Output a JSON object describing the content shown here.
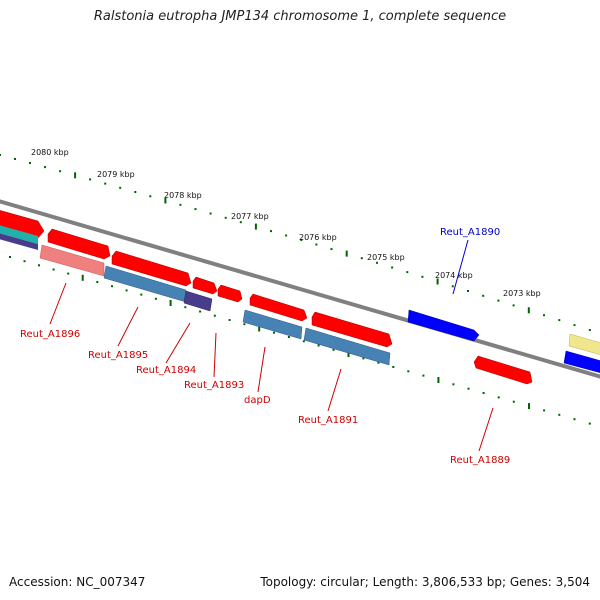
{
  "title": "Ralstonia eutropha JMP134 chromosome 1, complete sequence",
  "footer": {
    "accession_label": "Accession:",
    "accession": "NC_007347",
    "topology_label": "Topology:",
    "topology": "circular",
    "length_label": "Length:",
    "length": "3,806,533 bp",
    "genes_label": "Genes:",
    "genes": "3,504"
  },
  "ticks": [
    "2080 kbp",
    "2079 kbp",
    "2078 kbp",
    "2077 kbp",
    "2076 kbp",
    "2075 kbp",
    "2074 kbp",
    "2073 kbp"
  ],
  "genes": [
    {
      "label": "Reut_A1896",
      "color": "#cc0000"
    },
    {
      "label": "Reut_A1895",
      "color": "#cc0000"
    },
    {
      "label": "Reut_A1894",
      "color": "#cc0000"
    },
    {
      "label": "Reut_A1893",
      "color": "#cc0000"
    },
    {
      "label": "dapD",
      "color": "#cc0000"
    },
    {
      "label": "Reut_A1891",
      "color": "#cc0000"
    },
    {
      "label": "Reut_A1890",
      "color": "#0000cc"
    },
    {
      "label": "Reut_A1889",
      "color": "#cc0000"
    }
  ],
  "colors": {
    "cds_forward": "#ff0000",
    "cds_reverse": "#0000ff",
    "rna_light": "#f08080",
    "steel_blue": "#4682b4",
    "dark_slate": "#483d8b",
    "backbone": "#808080",
    "tick_dots": "#006400"
  }
}
